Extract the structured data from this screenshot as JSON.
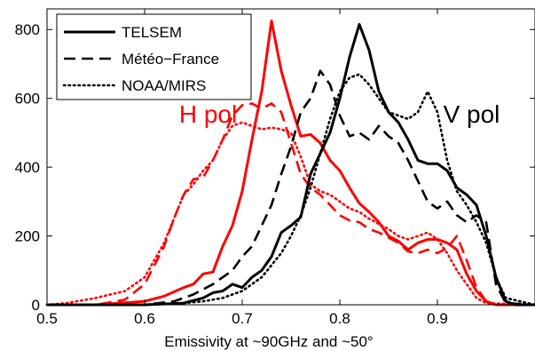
{
  "chart_data": {
    "type": "line",
    "xlabel": "Emissivity at ~90GHz and ~50°",
    "ylabel": "",
    "xlim": [
      0.5,
      1.0
    ],
    "ylim": [
      0,
      860
    ],
    "x_ticks": [
      "0.5",
      "0.6",
      "0.7",
      "0.8",
      "0.9"
    ],
    "x_tick_values": [
      0.5,
      0.6,
      0.7,
      0.8,
      0.9
    ],
    "y_ticks": [
      "0",
      "200",
      "400",
      "600",
      "800"
    ],
    "y_tick_values": [
      0,
      200,
      400,
      600,
      800
    ],
    "grid": false,
    "legend_position": "top-left",
    "legend": [
      {
        "label": "TELSEM",
        "style": "solid"
      },
      {
        "label": "Météo−France",
        "style": "dashed"
      },
      {
        "label": "NOAA/MIRS",
        "style": "dotted"
      }
    ],
    "annotations": [
      {
        "text": "H pol",
        "color": "#ff0000",
        "x": 0.665,
        "y": 555
      },
      {
        "text": "V pol",
        "color": "#000000",
        "x": 0.935,
        "y": 555
      }
    ],
    "series": [
      {
        "label": "TELSEM",
        "group": "H pol",
        "color": "#ff0000",
        "style": "solid",
        "points": [
          [
            0.5,
            0
          ],
          [
            0.55,
            0
          ],
          [
            0.6,
            10
          ],
          [
            0.62,
            25
          ],
          [
            0.64,
            50
          ],
          [
            0.65,
            60
          ],
          [
            0.66,
            90
          ],
          [
            0.67,
            95
          ],
          [
            0.68,
            170
          ],
          [
            0.69,
            230
          ],
          [
            0.7,
            330
          ],
          [
            0.71,
            480
          ],
          [
            0.72,
            620
          ],
          [
            0.73,
            825
          ],
          [
            0.74,
            680
          ],
          [
            0.75,
            580
          ],
          [
            0.76,
            490
          ],
          [
            0.77,
            495
          ],
          [
            0.78,
            470
          ],
          [
            0.79,
            420
          ],
          [
            0.8,
            390
          ],
          [
            0.81,
            340
          ],
          [
            0.82,
            295
          ],
          [
            0.83,
            270
          ],
          [
            0.84,
            240
          ],
          [
            0.85,
            200
          ],
          [
            0.86,
            185
          ],
          [
            0.87,
            160
          ],
          [
            0.88,
            180
          ],
          [
            0.89,
            190
          ],
          [
            0.9,
            190
          ],
          [
            0.91,
            180
          ],
          [
            0.92,
            160
          ],
          [
            0.93,
            90
          ],
          [
            0.94,
            40
          ],
          [
            0.95,
            10
          ],
          [
            0.96,
            0
          ],
          [
            1.0,
            0
          ]
        ]
      },
      {
        "label": "Météo−France",
        "group": "H pol",
        "color": "#ff0000",
        "style": "dashed",
        "points": [
          [
            0.5,
            0
          ],
          [
            0.55,
            0
          ],
          [
            0.58,
            15
          ],
          [
            0.6,
            60
          ],
          [
            0.62,
            170
          ],
          [
            0.63,
            250
          ],
          [
            0.64,
            320
          ],
          [
            0.65,
            365
          ],
          [
            0.66,
            370
          ],
          [
            0.67,
            420
          ],
          [
            0.68,
            480
          ],
          [
            0.69,
            550
          ],
          [
            0.7,
            580
          ],
          [
            0.71,
            585
          ],
          [
            0.72,
            570
          ],
          [
            0.73,
            585
          ],
          [
            0.74,
            560
          ],
          [
            0.75,
            470
          ],
          [
            0.76,
            380
          ],
          [
            0.77,
            340
          ],
          [
            0.78,
            320
          ],
          [
            0.79,
            290
          ],
          [
            0.8,
            260
          ],
          [
            0.81,
            245
          ],
          [
            0.82,
            240
          ],
          [
            0.83,
            220
          ],
          [
            0.84,
            210
          ],
          [
            0.85,
            195
          ],
          [
            0.86,
            180
          ],
          [
            0.87,
            155
          ],
          [
            0.88,
            150
          ],
          [
            0.89,
            160
          ],
          [
            0.9,
            150
          ],
          [
            0.91,
            165
          ],
          [
            0.92,
            200
          ],
          [
            0.93,
            130
          ],
          [
            0.94,
            50
          ],
          [
            0.95,
            10
          ],
          [
            0.96,
            0
          ],
          [
            1.0,
            0
          ]
        ]
      },
      {
        "label": "NOAA/MIRS",
        "group": "H pol",
        "color": "#ff0000",
        "style": "dotted",
        "points": [
          [
            0.5,
            0
          ],
          [
            0.52,
            5
          ],
          [
            0.55,
            20
          ],
          [
            0.58,
            40
          ],
          [
            0.6,
            80
          ],
          [
            0.62,
            180
          ],
          [
            0.63,
            250
          ],
          [
            0.64,
            320
          ],
          [
            0.65,
            350
          ],
          [
            0.66,
            390
          ],
          [
            0.67,
            420
          ],
          [
            0.68,
            480
          ],
          [
            0.69,
            520
          ],
          [
            0.7,
            530
          ],
          [
            0.71,
            520
          ],
          [
            0.72,
            510
          ],
          [
            0.73,
            515
          ],
          [
            0.74,
            510
          ],
          [
            0.75,
            500
          ],
          [
            0.76,
            430
          ],
          [
            0.77,
            350
          ],
          [
            0.78,
            330
          ],
          [
            0.79,
            320
          ],
          [
            0.8,
            300
          ],
          [
            0.81,
            280
          ],
          [
            0.82,
            270
          ],
          [
            0.83,
            250
          ],
          [
            0.84,
            235
          ],
          [
            0.85,
            220
          ],
          [
            0.86,
            200
          ],
          [
            0.87,
            190
          ],
          [
            0.88,
            200
          ],
          [
            0.89,
            210
          ],
          [
            0.9,
            190
          ],
          [
            0.91,
            150
          ],
          [
            0.92,
            100
          ],
          [
            0.93,
            60
          ],
          [
            0.94,
            20
          ],
          [
            0.95,
            5
          ],
          [
            1.0,
            0
          ]
        ]
      },
      {
        "label": "TELSEM",
        "group": "V pol",
        "color": "#000000",
        "style": "solid",
        "points": [
          [
            0.5,
            0
          ],
          [
            0.6,
            0
          ],
          [
            0.64,
            5
          ],
          [
            0.66,
            20
          ],
          [
            0.67,
            35
          ],
          [
            0.68,
            40
          ],
          [
            0.69,
            60
          ],
          [
            0.7,
            50
          ],
          [
            0.71,
            80
          ],
          [
            0.72,
            100
          ],
          [
            0.73,
            140
          ],
          [
            0.74,
            210
          ],
          [
            0.75,
            230
          ],
          [
            0.76,
            255
          ],
          [
            0.77,
            380
          ],
          [
            0.78,
            440
          ],
          [
            0.79,
            500
          ],
          [
            0.8,
            600
          ],
          [
            0.81,
            720
          ],
          [
            0.82,
            815
          ],
          [
            0.83,
            740
          ],
          [
            0.84,
            620
          ],
          [
            0.85,
            560
          ],
          [
            0.86,
            530
          ],
          [
            0.87,
            480
          ],
          [
            0.88,
            420
          ],
          [
            0.89,
            410
          ],
          [
            0.9,
            410
          ],
          [
            0.91,
            390
          ],
          [
            0.92,
            340
          ],
          [
            0.93,
            320
          ],
          [
            0.94,
            290
          ],
          [
            0.95,
            200
          ],
          [
            0.96,
            80
          ],
          [
            0.97,
            10
          ],
          [
            0.98,
            0
          ],
          [
            1.0,
            0
          ]
        ]
      },
      {
        "label": "Météo−France",
        "group": "V pol",
        "color": "#000000",
        "style": "dashed",
        "points": [
          [
            0.5,
            0
          ],
          [
            0.6,
            0
          ],
          [
            0.63,
            10
          ],
          [
            0.65,
            30
          ],
          [
            0.67,
            60
          ],
          [
            0.69,
            100
          ],
          [
            0.7,
            140
          ],
          [
            0.71,
            170
          ],
          [
            0.72,
            230
          ],
          [
            0.73,
            290
          ],
          [
            0.74,
            380
          ],
          [
            0.75,
            460
          ],
          [
            0.76,
            560
          ],
          [
            0.77,
            600
          ],
          [
            0.78,
            680
          ],
          [
            0.79,
            640
          ],
          [
            0.8,
            550
          ],
          [
            0.81,
            490
          ],
          [
            0.82,
            500
          ],
          [
            0.83,
            480
          ],
          [
            0.84,
            520
          ],
          [
            0.85,
            490
          ],
          [
            0.86,
            470
          ],
          [
            0.87,
            420
          ],
          [
            0.88,
            360
          ],
          [
            0.89,
            300
          ],
          [
            0.9,
            280
          ],
          [
            0.91,
            300
          ],
          [
            0.92,
            260
          ],
          [
            0.93,
            240
          ],
          [
            0.94,
            260
          ],
          [
            0.95,
            240
          ],
          [
            0.96,
            60
          ],
          [
            0.97,
            5
          ],
          [
            1.0,
            0
          ]
        ]
      },
      {
        "label": "NOAA/MIRS",
        "group": "V pol",
        "color": "#000000",
        "style": "dotted",
        "points": [
          [
            0.5,
            0
          ],
          [
            0.6,
            0
          ],
          [
            0.64,
            5
          ],
          [
            0.66,
            10
          ],
          [
            0.68,
            20
          ],
          [
            0.7,
            40
          ],
          [
            0.72,
            80
          ],
          [
            0.74,
            150
          ],
          [
            0.75,
            200
          ],
          [
            0.76,
            260
          ],
          [
            0.77,
            340
          ],
          [
            0.78,
            440
          ],
          [
            0.79,
            540
          ],
          [
            0.8,
            620
          ],
          [
            0.81,
            660
          ],
          [
            0.82,
            670
          ],
          [
            0.83,
            640
          ],
          [
            0.84,
            600
          ],
          [
            0.85,
            560
          ],
          [
            0.86,
            550
          ],
          [
            0.87,
            540
          ],
          [
            0.88,
            560
          ],
          [
            0.89,
            620
          ],
          [
            0.9,
            560
          ],
          [
            0.91,
            420
          ],
          [
            0.92,
            330
          ],
          [
            0.93,
            290
          ],
          [
            0.94,
            240
          ],
          [
            0.95,
            180
          ],
          [
            0.96,
            80
          ],
          [
            0.97,
            20
          ],
          [
            1.0,
            0
          ]
        ]
      }
    ]
  }
}
